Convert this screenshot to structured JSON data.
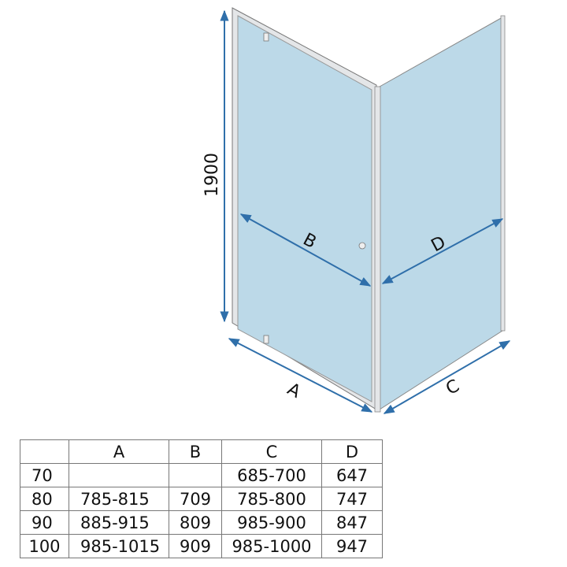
{
  "dimensions": {
    "height": "1900",
    "labels": {
      "a": "A",
      "b": "B",
      "c": "C",
      "d": "D"
    }
  },
  "colors": {
    "glass": "#bcd9e8",
    "arrow": "#2f6faa",
    "frame": "#e4e6e8"
  },
  "table": {
    "headers": [
      "",
      "A",
      "B",
      "C",
      "D"
    ],
    "rows": [
      [
        "70",
        "",
        "",
        "685-700",
        "647"
      ],
      [
        "80",
        "785-815",
        "709",
        "785-800",
        "747"
      ],
      [
        "90",
        "885-915",
        "809",
        "985-900",
        "847"
      ],
      [
        "100",
        "985-1015",
        "909",
        "985-1000",
        "947"
      ]
    ]
  }
}
